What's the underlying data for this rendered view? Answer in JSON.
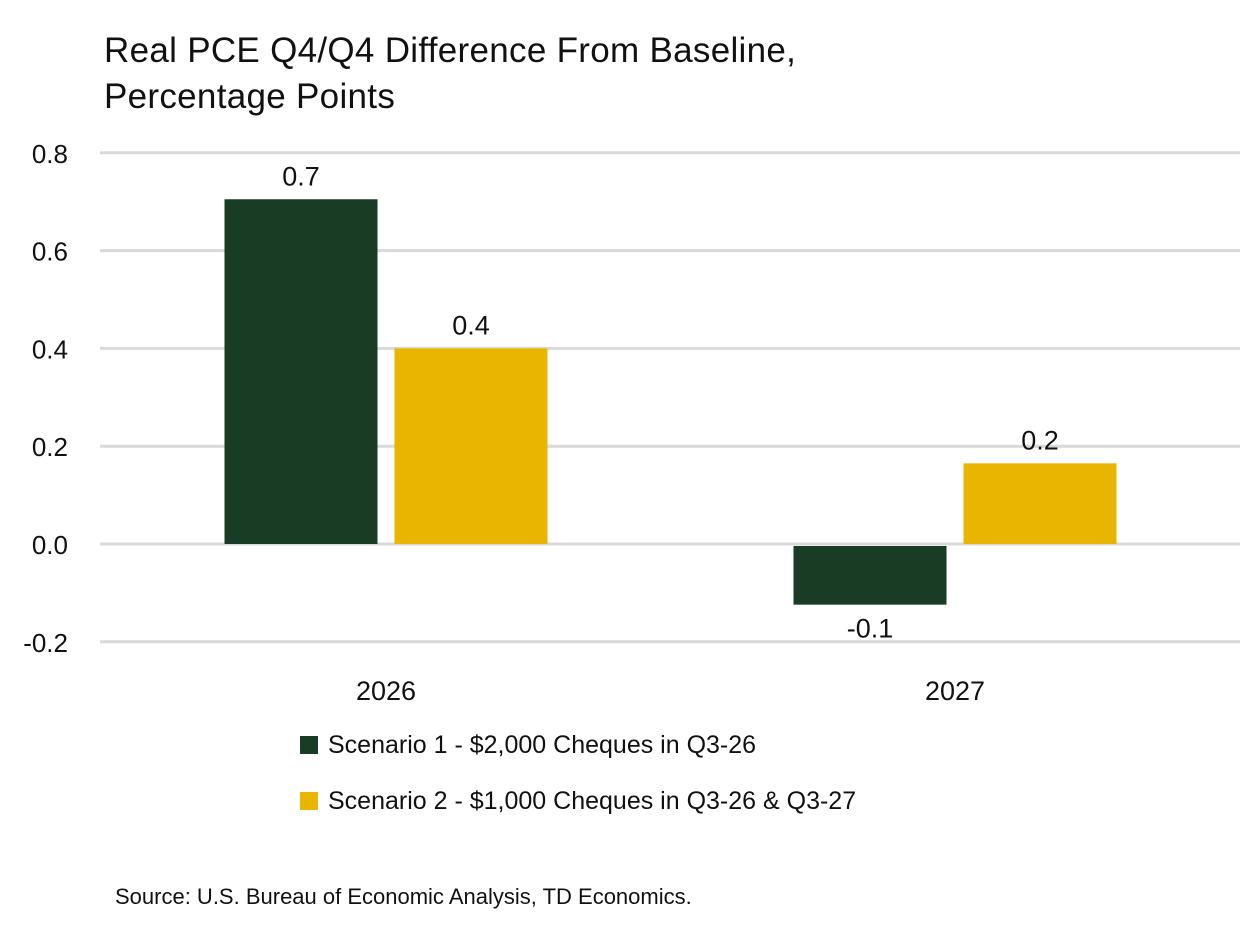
{
  "chart_data": {
    "type": "bar",
    "title_lines": [
      "Real PCE Q4/Q4 Difference From Baseline,",
      "Percentage Points"
    ],
    "categories": [
      "2026",
      "2027"
    ],
    "series": [
      {
        "name": "Scenario 1 - $2,000 Cheques in Q3-26",
        "color": "#183d24",
        "values": [
          0.705,
          -0.12
        ],
        "labels": [
          "0.7",
          "-0.1"
        ]
      },
      {
        "name": "Scenario 2 - $1,000 Cheques in Q3-26 & Q3-27",
        "color": "#e8b500",
        "values": [
          0.4,
          0.165
        ],
        "labels": [
          "0.4",
          "0.2"
        ]
      }
    ],
    "ylim": [
      -0.2,
      0.8
    ],
    "yticks": [
      "-0.2",
      "0.0",
      "0.2",
      "0.4",
      "0.6",
      "0.8"
    ],
    "grid": true,
    "gridline_color": "#d9d9d9",
    "legend_position": "bottom",
    "source": "Source: U.S. Bureau of Economic Analysis, TD Economics."
  }
}
